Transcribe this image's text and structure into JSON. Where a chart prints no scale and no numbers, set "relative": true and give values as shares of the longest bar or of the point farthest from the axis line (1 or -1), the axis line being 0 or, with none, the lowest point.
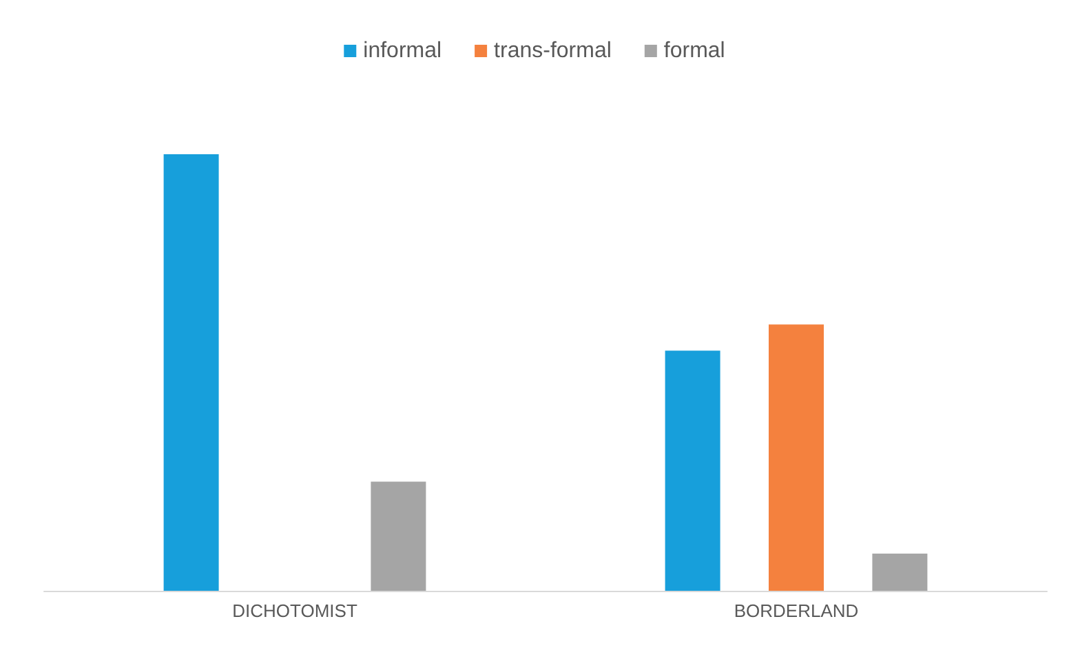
{
  "chart_data": {
    "type": "bar",
    "relative": true,
    "categories": [
      "DICHOTOMIST",
      "BORDERLAND"
    ],
    "series": [
      {
        "name": "informal",
        "color": "#179fdb",
        "values": [
          1,
          0.55
        ]
      },
      {
        "name": "trans-formal",
        "color": "#f4813e",
        "values": [
          null,
          0.61
        ]
      },
      {
        "name": "formal",
        "color": "#a5a5a5",
        "values": [
          0.25,
          0.085
        ]
      }
    ],
    "legend": "top"
  }
}
